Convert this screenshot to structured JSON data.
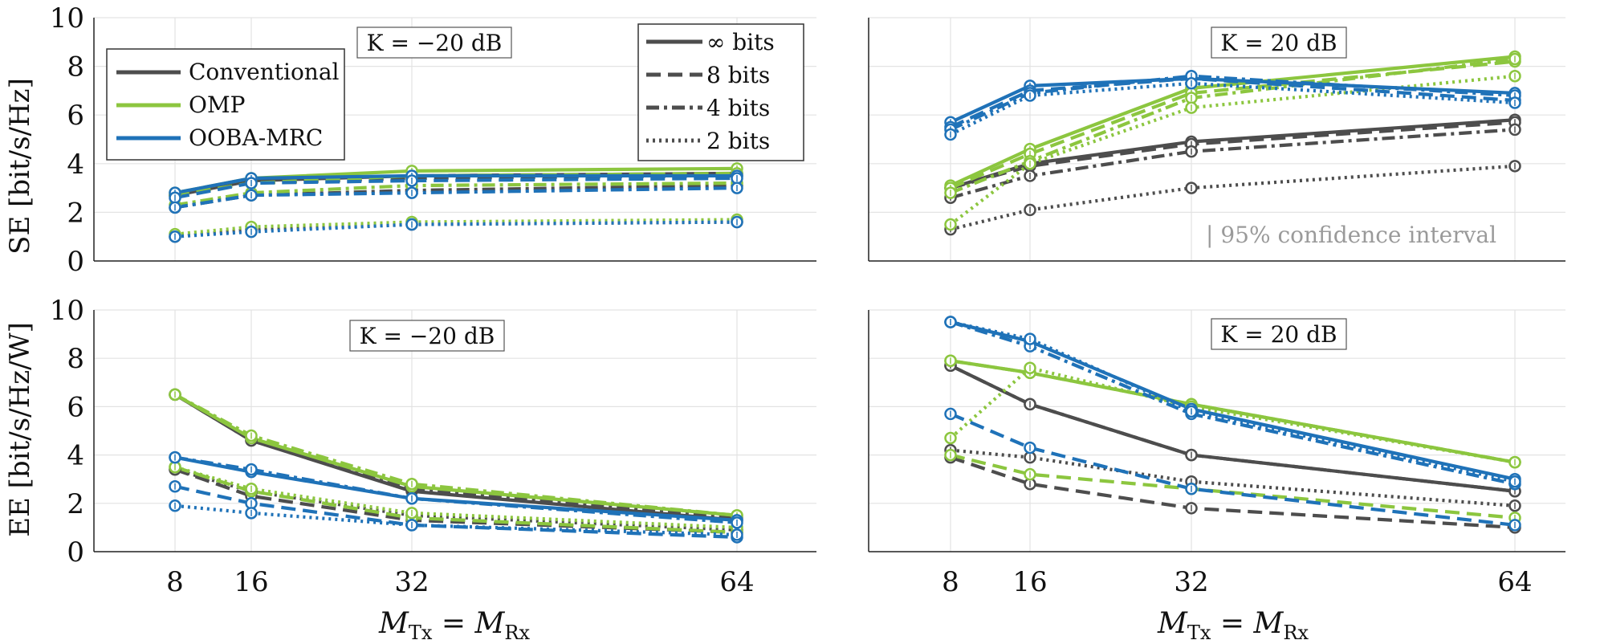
{
  "colors": {
    "Conventional": "#4d4d4d",
    "OMP": "#8cc63f",
    "OOBA-MRC": "#1f72b8"
  },
  "legend_methods": [
    "Conventional",
    "OMP",
    "OOBA-MRC"
  ],
  "legend_bits": [
    "∞ bits",
    "8 bits",
    "4 bits",
    "2 bits"
  ],
  "ci_note": "| 95% confidence interval",
  "chart_data": [
    {
      "type": "line",
      "panel": "top-left",
      "annotation": "K = −20 dB",
      "ylabel": "SE [bit/s/Hz]",
      "xlabel": "",
      "ylim": [
        0,
        10
      ],
      "yticks": [
        0,
        2,
        4,
        6,
        8,
        10
      ],
      "xticks": [
        8,
        16,
        32,
        64
      ],
      "x": [
        8,
        16,
        32,
        64
      ],
      "series": [
        {
          "method": "Conventional",
          "bits": "∞ bits",
          "values": [
            2.7,
            3.3,
            3.5,
            3.6
          ]
        },
        {
          "method": "Conventional",
          "bits": "8 bits",
          "values": [
            2.7,
            3.2,
            3.4,
            3.5
          ]
        },
        {
          "method": "Conventional",
          "bits": "4 bits",
          "values": [
            2.2,
            2.7,
            2.9,
            3.1
          ]
        },
        {
          "method": "Conventional",
          "bits": "2 bits",
          "values": [
            1.0,
            1.3,
            1.5,
            1.6
          ]
        },
        {
          "method": "OMP",
          "bits": "∞ bits",
          "values": [
            2.8,
            3.4,
            3.7,
            3.8
          ]
        },
        {
          "method": "OMP",
          "bits": "8 bits",
          "values": [
            2.7,
            3.2,
            3.5,
            3.6
          ]
        },
        {
          "method": "OMP",
          "bits": "4 bits",
          "values": [
            2.3,
            2.8,
            3.1,
            3.2
          ]
        },
        {
          "method": "OMP",
          "bits": "2 bits",
          "values": [
            1.1,
            1.4,
            1.6,
            1.7
          ]
        },
        {
          "method": "OOBA-MRC",
          "bits": "∞ bits",
          "values": [
            2.8,
            3.4,
            3.5,
            3.5
          ]
        },
        {
          "method": "OOBA-MRC",
          "bits": "8 bits",
          "values": [
            2.6,
            3.2,
            3.3,
            3.4
          ]
        },
        {
          "method": "OOBA-MRC",
          "bits": "4 bits",
          "values": [
            2.2,
            2.7,
            2.8,
            3.0
          ]
        },
        {
          "method": "OOBA-MRC",
          "bits": "2 bits",
          "values": [
            1.0,
            1.2,
            1.5,
            1.6
          ]
        }
      ]
    },
    {
      "type": "line",
      "panel": "top-right",
      "annotation": "K = 20 dB",
      "ylabel": "",
      "xlabel": "",
      "ylim": [
        0,
        10
      ],
      "yticks": [
        0,
        2,
        4,
        6,
        8,
        10
      ],
      "xticks": [
        8,
        16,
        32,
        64
      ],
      "x": [
        8,
        16,
        32,
        64
      ],
      "series": [
        {
          "method": "Conventional",
          "bits": "∞ bits",
          "values": [
            3.0,
            4.0,
            4.9,
            5.8
          ]
        },
        {
          "method": "Conventional",
          "bits": "8 bits",
          "values": [
            3.0,
            3.9,
            4.8,
            5.7
          ]
        },
        {
          "method": "Conventional",
          "bits": "4 bits",
          "values": [
            2.6,
            3.5,
            4.5,
            5.4
          ]
        },
        {
          "method": "Conventional",
          "bits": "2 bits",
          "values": [
            1.3,
            2.1,
            3.0,
            3.9
          ]
        },
        {
          "method": "OMP",
          "bits": "∞ bits",
          "values": [
            3.1,
            4.6,
            7.1,
            8.4
          ]
        },
        {
          "method": "OMP",
          "bits": "8 bits",
          "values": [
            3.0,
            4.4,
            6.9,
            8.2
          ]
        },
        {
          "method": "OMP",
          "bits": "4 bits",
          "values": [
            2.8,
            4.1,
            6.7,
            8.3
          ]
        },
        {
          "method": "OMP",
          "bits": "2 bits",
          "values": [
            1.5,
            4.0,
            6.3,
            7.6
          ]
        },
        {
          "method": "OOBA-MRC",
          "bits": "∞ bits",
          "values": [
            5.7,
            7.2,
            7.5,
            6.9
          ]
        },
        {
          "method": "OOBA-MRC",
          "bits": "8 bits",
          "values": [
            5.5,
            7.0,
            7.5,
            6.6
          ]
        },
        {
          "method": "OOBA-MRC",
          "bits": "4 bits",
          "values": [
            5.4,
            6.9,
            7.6,
            6.8
          ]
        },
        {
          "method": "OOBA-MRC",
          "bits": "2 bits",
          "values": [
            5.2,
            6.8,
            7.3,
            6.5
          ]
        }
      ]
    },
    {
      "type": "line",
      "panel": "bottom-left",
      "annotation": "K = −20 dB",
      "ylabel": "EE [bit/s/Hz/W]",
      "xlabel": "M_Tx = M_Rx",
      "ylim": [
        0,
        10
      ],
      "yticks": [
        0,
        2,
        4,
        6,
        8,
        10
      ],
      "xticks": [
        8,
        16,
        32,
        64
      ],
      "x": [
        8,
        16,
        32,
        64
      ],
      "series": [
        {
          "method": "Conventional",
          "bits": "∞ bits",
          "values": [
            6.5,
            4.6,
            2.5,
            1.3
          ]
        },
        {
          "method": "Conventional",
          "bits": "8 bits",
          "values": [
            3.4,
            2.3,
            1.3,
            0.8
          ]
        },
        {
          "method": "Conventional",
          "bits": "4 bits",
          "values": [
            6.5,
            4.6,
            2.6,
            1.4
          ]
        },
        {
          "method": "Conventional",
          "bits": "2 bits",
          "values": [
            3.4,
            2.5,
            1.5,
            0.9
          ]
        },
        {
          "method": "OMP",
          "bits": "∞ bits",
          "values": [
            6.5,
            4.7,
            2.7,
            1.5
          ]
        },
        {
          "method": "OMP",
          "bits": "8 bits",
          "values": [
            3.5,
            2.5,
            1.4,
            0.8
          ]
        },
        {
          "method": "OMP",
          "bits": "4 bits",
          "values": [
            6.5,
            4.8,
            2.8,
            1.5
          ]
        },
        {
          "method": "OMP",
          "bits": "2 bits",
          "values": [
            3.5,
            2.6,
            1.6,
            1.0
          ]
        },
        {
          "method": "OOBA-MRC",
          "bits": "∞ bits",
          "values": [
            3.9,
            3.3,
            2.2,
            1.3
          ]
        },
        {
          "method": "OOBA-MRC",
          "bits": "8 bits",
          "values": [
            2.7,
            2.0,
            1.1,
            0.6
          ]
        },
        {
          "method": "OOBA-MRC",
          "bits": "4 bits",
          "values": [
            3.9,
            3.4,
            2.2,
            1.2
          ]
        },
        {
          "method": "OOBA-MRC",
          "bits": "2 bits",
          "values": [
            1.9,
            1.6,
            1.1,
            0.7
          ]
        }
      ]
    },
    {
      "type": "line",
      "panel": "bottom-right",
      "annotation": "K = 20 dB",
      "ylabel": "",
      "xlabel": "M_Tx = M_Rx",
      "ylim": [
        0,
        10
      ],
      "yticks": [
        0,
        2,
        4,
        6,
        8,
        10
      ],
      "xticks": [
        8,
        16,
        32,
        64
      ],
      "x": [
        8,
        16,
        32,
        64
      ],
      "series": [
        {
          "method": "Conventional",
          "bits": "∞ bits",
          "values": [
            7.7,
            6.1,
            4.0,
            2.5
          ]
        },
        {
          "method": "Conventional",
          "bits": "8 bits",
          "values": [
            3.9,
            2.8,
            1.8,
            1.0
          ]
        },
        {
          "method": "Conventional",
          "bits": "4 bits",
          "values": [
            7.7,
            6.1,
            4.0,
            2.5
          ]
        },
        {
          "method": "Conventional",
          "bits": "2 bits",
          "values": [
            4.2,
            3.9,
            2.9,
            1.9
          ]
        },
        {
          "method": "OMP",
          "bits": "∞ bits",
          "values": [
            7.9,
            7.4,
            6.1,
            3.7
          ]
        },
        {
          "method": "OMP",
          "bits": "8 bits",
          "values": [
            4.0,
            3.2,
            2.6,
            1.4
          ]
        },
        {
          "method": "OMP",
          "bits": "4 bits",
          "values": [
            7.9,
            7.4,
            6.1,
            3.7
          ]
        },
        {
          "method": "OMP",
          "bits": "2 bits",
          "values": [
            4.7,
            7.6,
            6.0,
            3.7
          ]
        },
        {
          "method": "OOBA-MRC",
          "bits": "∞ bits",
          "values": [
            9.5,
            8.7,
            5.9,
            3.0
          ]
        },
        {
          "method": "OOBA-MRC",
          "bits": "8 bits",
          "values": [
            5.7,
            4.3,
            2.6,
            1.1
          ]
        },
        {
          "method": "OOBA-MRC",
          "bits": "4 bits",
          "values": [
            9.5,
            8.5,
            5.7,
            2.8
          ]
        },
        {
          "method": "OOBA-MRC",
          "bits": "2 bits",
          "values": [
            9.5,
            8.8,
            5.8,
            2.9
          ]
        }
      ]
    }
  ]
}
